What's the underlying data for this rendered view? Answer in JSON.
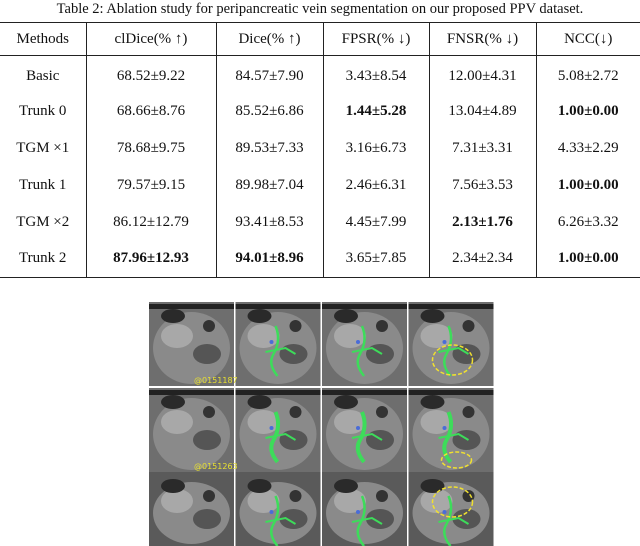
{
  "caption": "Table 2: Ablation study for peripancreatic vein segmentation on our proposed PPV dataset.",
  "table": {
    "header": [
      "Methods",
      "clDice(% ↑)",
      "Dice(% ↑)",
      "FPSR(% ↓)",
      "FNSR(% ↓)",
      "NCC(↓)"
    ],
    "rows": [
      [
        "Basic",
        "68.52±9.22",
        "84.57±7.90",
        "3.43±8.54",
        "12.00±4.31",
        "5.08±2.72"
      ],
      [
        "Trunk 0",
        "68.66±8.76",
        "85.52±6.86",
        "1.44±5.28",
        "13.04±4.89",
        "1.00±0.00"
      ],
      [
        "TGM ×1",
        "78.68±9.75",
        "89.53±7.33",
        "3.16±6.73",
        "7.31±3.31",
        "4.33±2.29"
      ],
      [
        "Trunk 1",
        "79.57±9.15",
        "89.98±7.04",
        "2.46±6.31",
        "7.56±3.53",
        "1.00±0.00"
      ],
      [
        "TGM ×2",
        "86.12±12.79",
        "93.41±8.53",
        "4.45±7.99",
        "2.13±1.76",
        "6.26±3.32"
      ],
      [
        "Trunk 2",
        "87.96±12.93",
        "94.01±8.96",
        "3.65±7.85",
        "2.34±2.34",
        "1.00±0.00"
      ]
    ]
  },
  "figure": {
    "labels": [
      "@0151187",
      "@0151263"
    ]
  }
}
